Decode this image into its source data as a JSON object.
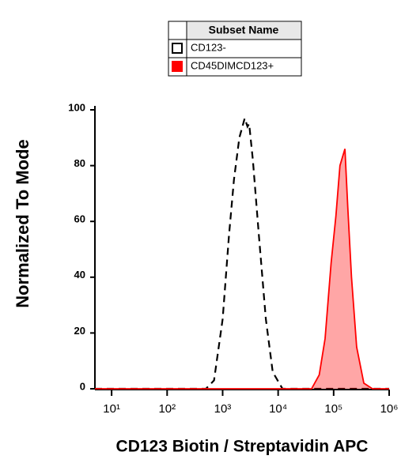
{
  "chart_data": {
    "type": "histogram-overlay",
    "x_label": "CD123 Biotin / Streptavidin APC",
    "y_label": "Normalized To Mode",
    "legend_title": "Subset Name",
    "xscale": "log",
    "xlim": [
      5,
      1000000
    ],
    "ylim": [
      0,
      100
    ],
    "xticks": [
      {
        "value": 10,
        "label": "10¹"
      },
      {
        "value": 100,
        "label": "10²"
      },
      {
        "value": 1000,
        "label": "10³"
      },
      {
        "value": 10000,
        "label": "10⁴"
      },
      {
        "value": 100000,
        "label": "10⁵"
      },
      {
        "value": 1000000,
        "label": "10⁶"
      }
    ],
    "yticks": [
      0,
      20,
      40,
      60,
      80,
      100
    ],
    "series": [
      {
        "name": "CD123-",
        "color": "#000000",
        "dashed": true,
        "filled": false,
        "x": [
          5,
          500,
          700,
          1000,
          1300,
          1600,
          2000,
          2500,
          2800,
          3000,
          3500,
          4500,
          6000,
          8000,
          12000,
          20000,
          1000000
        ],
        "values": [
          0,
          0,
          3,
          25,
          55,
          75,
          90,
          97,
          94,
          95,
          82,
          55,
          25,
          6,
          0,
          0,
          0
        ]
      },
      {
        "name": "CD45DIMCD123+",
        "color": "#ff0000",
        "dashed": false,
        "filled": true,
        "x": [
          5,
          40000,
          55000,
          70000,
          90000,
          110000,
          130000,
          160000,
          180000,
          210000,
          260000,
          350000,
          500000,
          1000000
        ],
        "values": [
          0,
          0,
          5,
          18,
          45,
          62,
          80,
          86,
          65,
          40,
          15,
          2,
          0,
          0
        ]
      }
    ]
  }
}
